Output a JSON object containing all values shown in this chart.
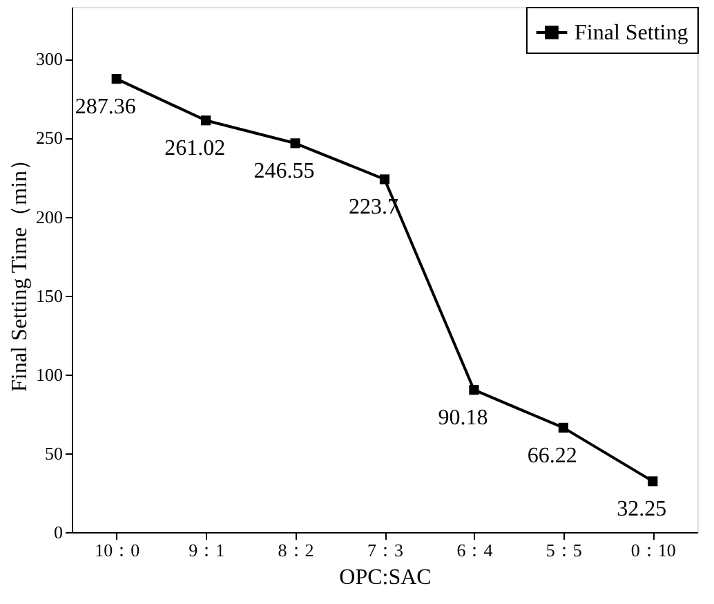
{
  "chart_data": {
    "type": "line",
    "xlabel": "OPC:SAC",
    "ylabel": "Final Setting Time（min）",
    "categories": [
      "10：0",
      "9：1",
      "8：2",
      "7：3",
      "6：4",
      "5：5",
      "0：10"
    ],
    "series": [
      {
        "name": "Final Setting",
        "color": "#000000",
        "values": [
          287.36,
          261.02,
          246.55,
          223.7,
          90.18,
          66.22,
          32.25
        ]
      }
    ],
    "ylim": [
      0,
      333
    ],
    "yticks": [
      0,
      50,
      100,
      150,
      200,
      250,
      300
    ],
    "grid": false,
    "legend": "top right",
    "marker": "square",
    "line_style": "solid",
    "data_labels": true
  }
}
